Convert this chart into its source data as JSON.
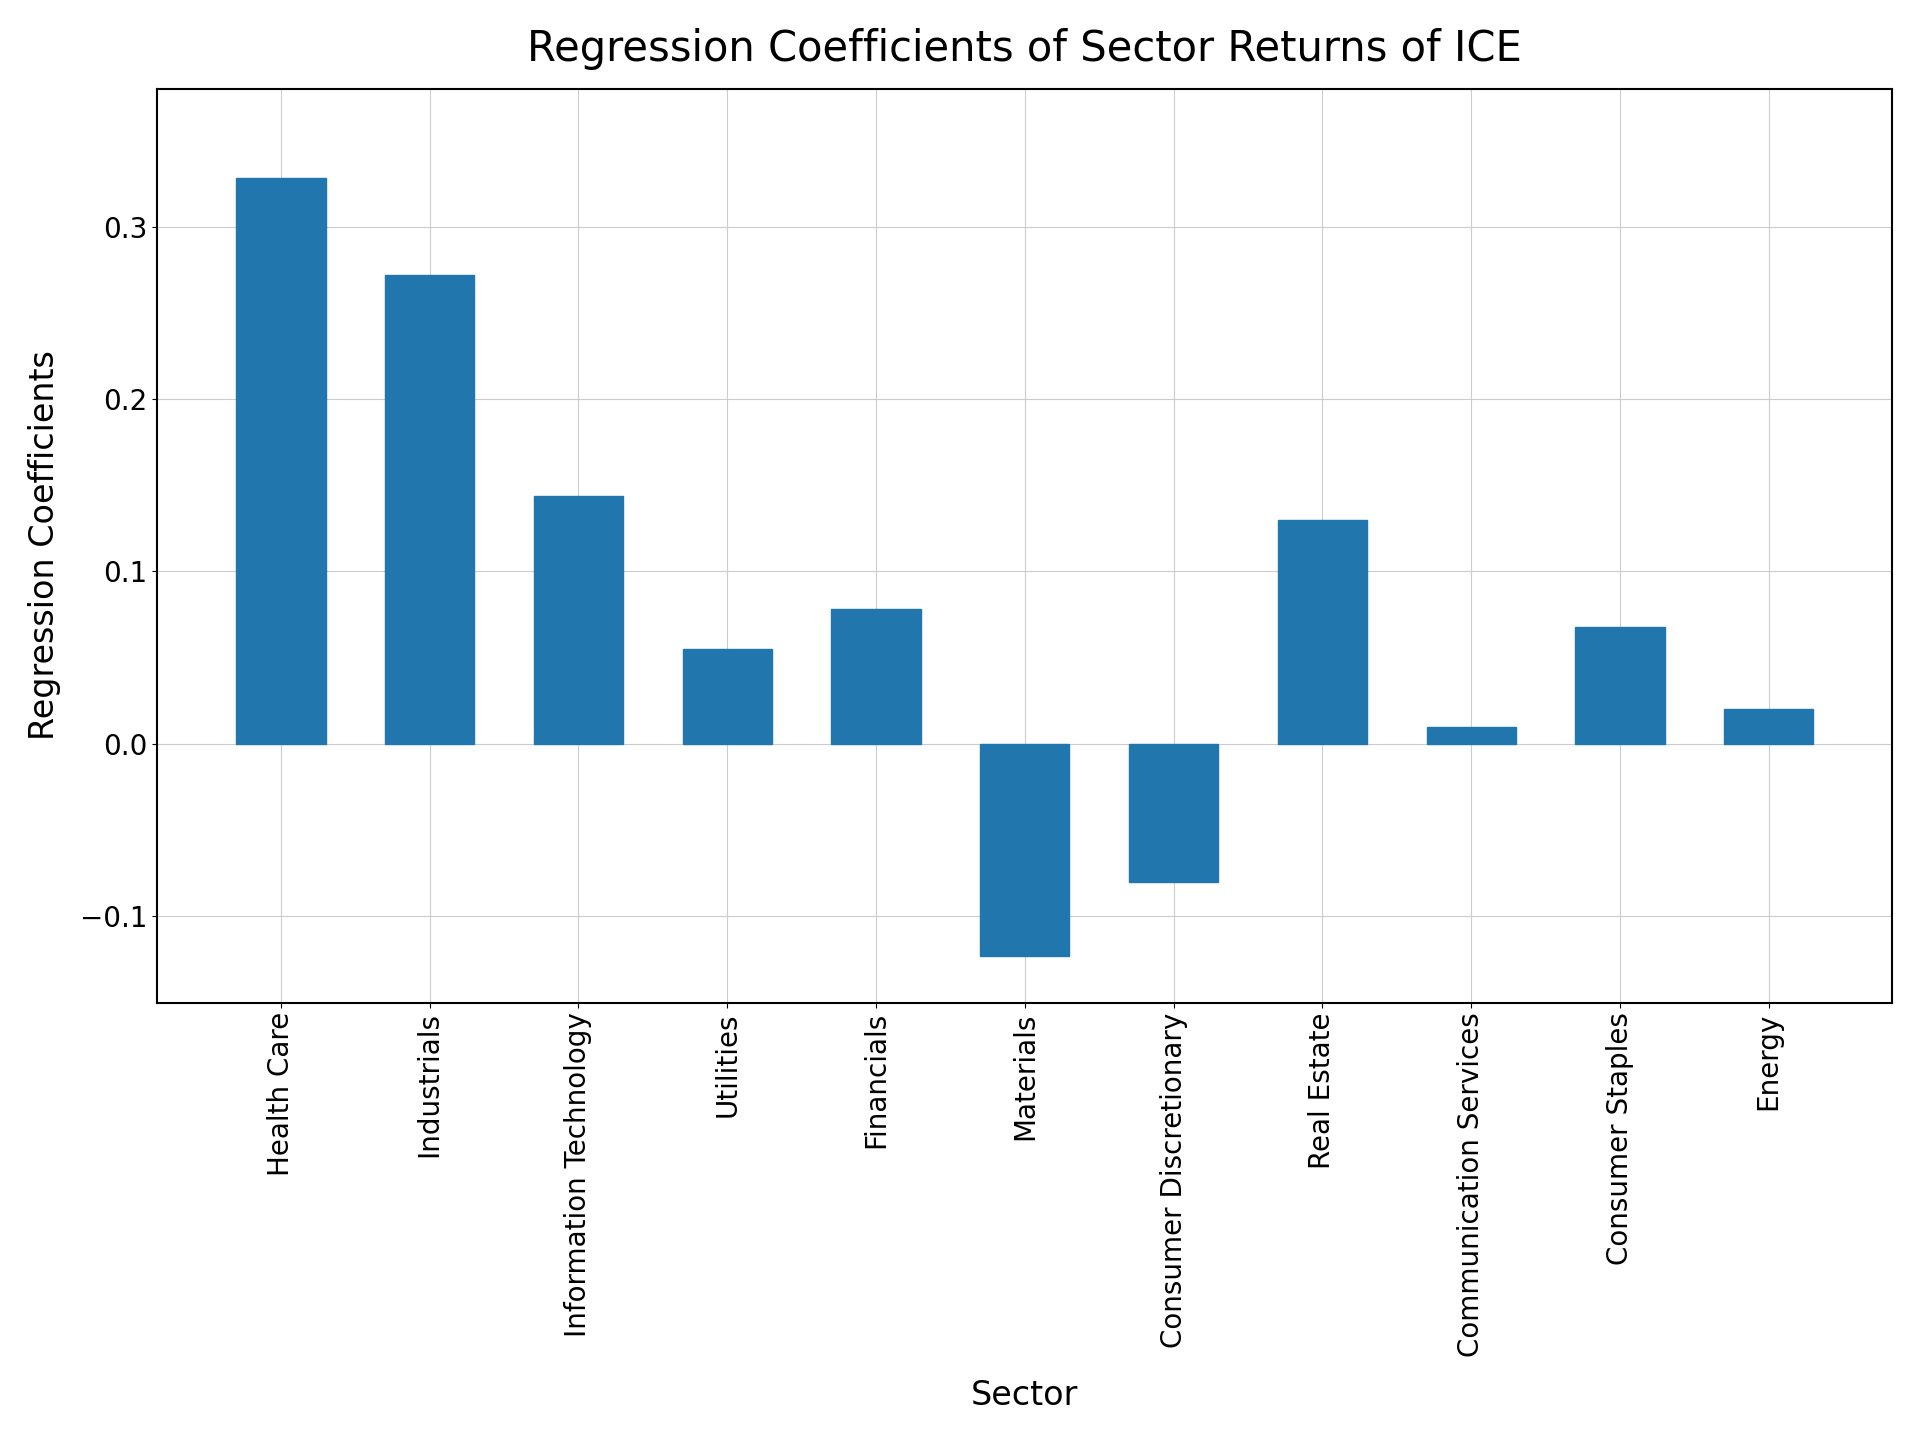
{
  "title": "Regression Coefficients of Sector Returns of ICE",
  "xlabel": "Sector",
  "ylabel": "Regression Coefficients",
  "categories": [
    "Health Care",
    "Industrials",
    "Information Technology",
    "Utilities",
    "Financials",
    "Materials",
    "Consumer Discretionary",
    "Real Estate",
    "Communication Services",
    "Consumer Staples",
    "Energy"
  ],
  "values": [
    0.328,
    0.272,
    0.144,
    0.055,
    0.078,
    -0.123,
    -0.08,
    0.13,
    0.01,
    0.068,
    0.02
  ],
  "bar_color": "#2176ae",
  "ylim": [
    -0.15,
    0.38
  ],
  "yticks": [
    -0.1,
    0.0,
    0.1,
    0.2,
    0.3
  ],
  "title_fontsize": 30,
  "label_fontsize": 24,
  "tick_fontsize": 20,
  "bar_width": 0.6,
  "grid": true,
  "figsize": [
    19.2,
    14.4
  ],
  "dpi": 100
}
